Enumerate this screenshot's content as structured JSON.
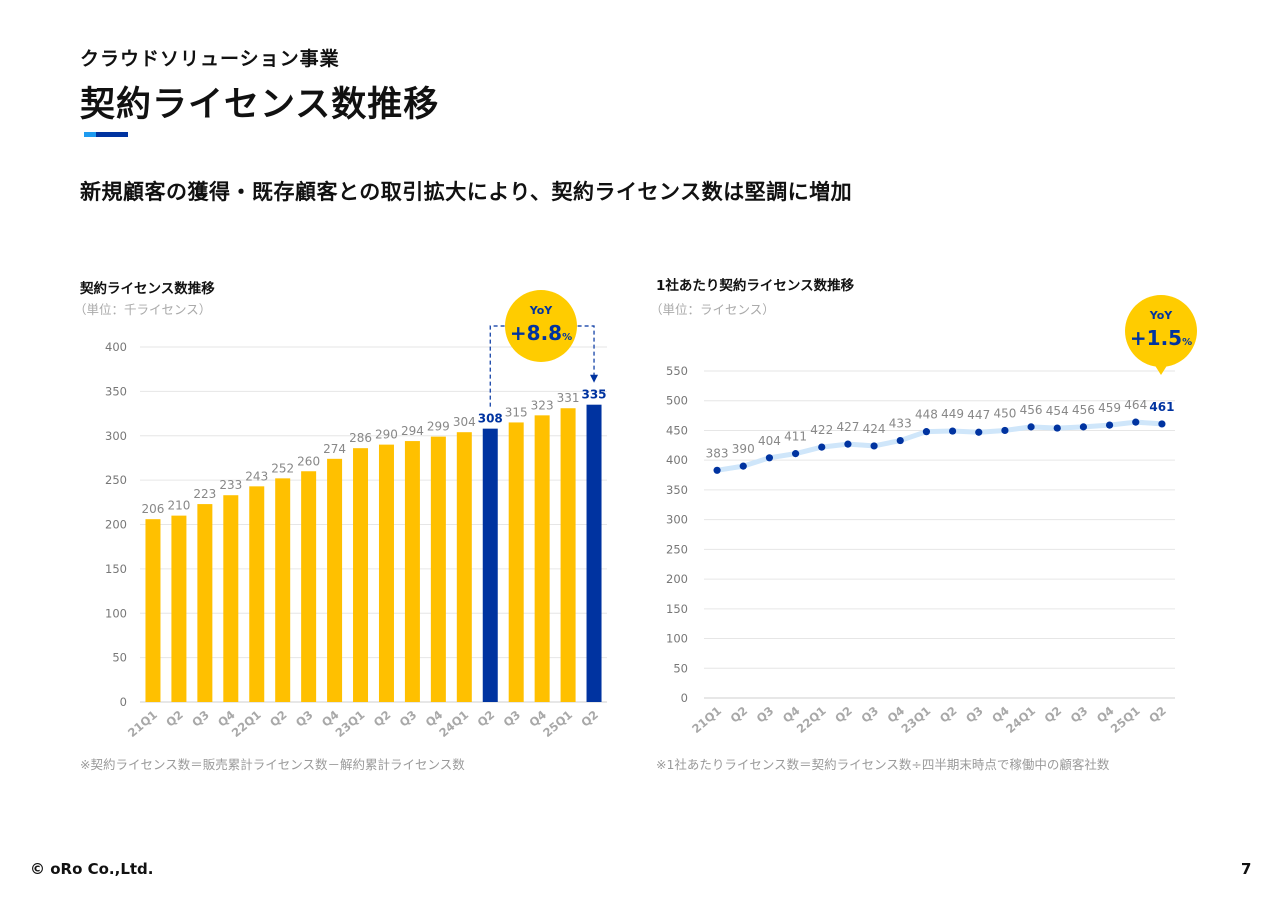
{
  "header": {
    "section": "クラウドソリューション事業",
    "title": "契約ライセンス数推移",
    "lead": "新規顧客の獲得・既存顧客との取引拡大により、契約ライセンス数は堅調に増加"
  },
  "colors": {
    "bar": "#FFC000",
    "highlight": "#0033A0",
    "line": "#CFE6FA",
    "dot": "#0033A0",
    "badge": "#FFCC00",
    "accent_light": "#1E9BF0"
  },
  "left_chart": {
    "title": "契約ライセンス数推移",
    "unit": "（単位：千ライセンス）",
    "note": "※契約ライセンス数＝販売累計ライセンス数－解約累計ライセンス数",
    "badge_label": "YoY",
    "badge_value": "+8.8",
    "badge_unit": "%"
  },
  "right_chart": {
    "title": "1社あたり契約ライセンス数推移",
    "unit": "（単位：ライセンス）",
    "note": "※1社あたりライセンス数＝契約ライセンス数÷四半期末時点で稼働中の顧客社数",
    "badge_label": "YoY",
    "badge_value": "+1.5",
    "badge_unit": "%"
  },
  "footer": {
    "logo": "© oRo Co.,Ltd.",
    "page": "7"
  },
  "chart_data": [
    {
      "type": "bar",
      "title": "契約ライセンス数推移",
      "categories": [
        "21Q1",
        "Q2",
        "Q3",
        "Q4",
        "22Q1",
        "Q2",
        "Q3",
        "Q4",
        "23Q1",
        "Q2",
        "Q3",
        "Q4",
        "24Q1",
        "Q2",
        "Q3",
        "Q4",
        "25Q1",
        "Q2"
      ],
      "values": [
        206,
        210,
        223,
        233,
        243,
        252,
        260,
        274,
        286,
        290,
        294,
        299,
        304,
        308,
        315,
        323,
        331,
        335
      ],
      "highlight_indices": [
        13,
        17
      ],
      "ylim": [
        0,
        400
      ],
      "yticks": [
        0,
        50,
        100,
        150,
        200,
        250,
        300,
        350,
        400
      ],
      "grid": true
    },
    {
      "type": "line",
      "title": "1社あたり契約ライセンス数推移",
      "categories": [
        "21Q1",
        "Q2",
        "Q3",
        "Q4",
        "22Q1",
        "Q2",
        "Q3",
        "Q4",
        "23Q1",
        "Q2",
        "Q3",
        "Q4",
        "24Q1",
        "Q2",
        "Q3",
        "Q4",
        "25Q1",
        "Q2"
      ],
      "values": [
        383,
        390,
        404,
        411,
        422,
        427,
        424,
        433,
        448,
        449,
        447,
        450,
        456,
        454,
        456,
        459,
        464,
        461
      ],
      "highlight_indices": [
        17
      ],
      "ylim": [
        0,
        550
      ],
      "yticks": [
        0,
        50,
        100,
        150,
        200,
        250,
        300,
        350,
        400,
        450,
        500,
        550
      ],
      "grid": true
    }
  ]
}
